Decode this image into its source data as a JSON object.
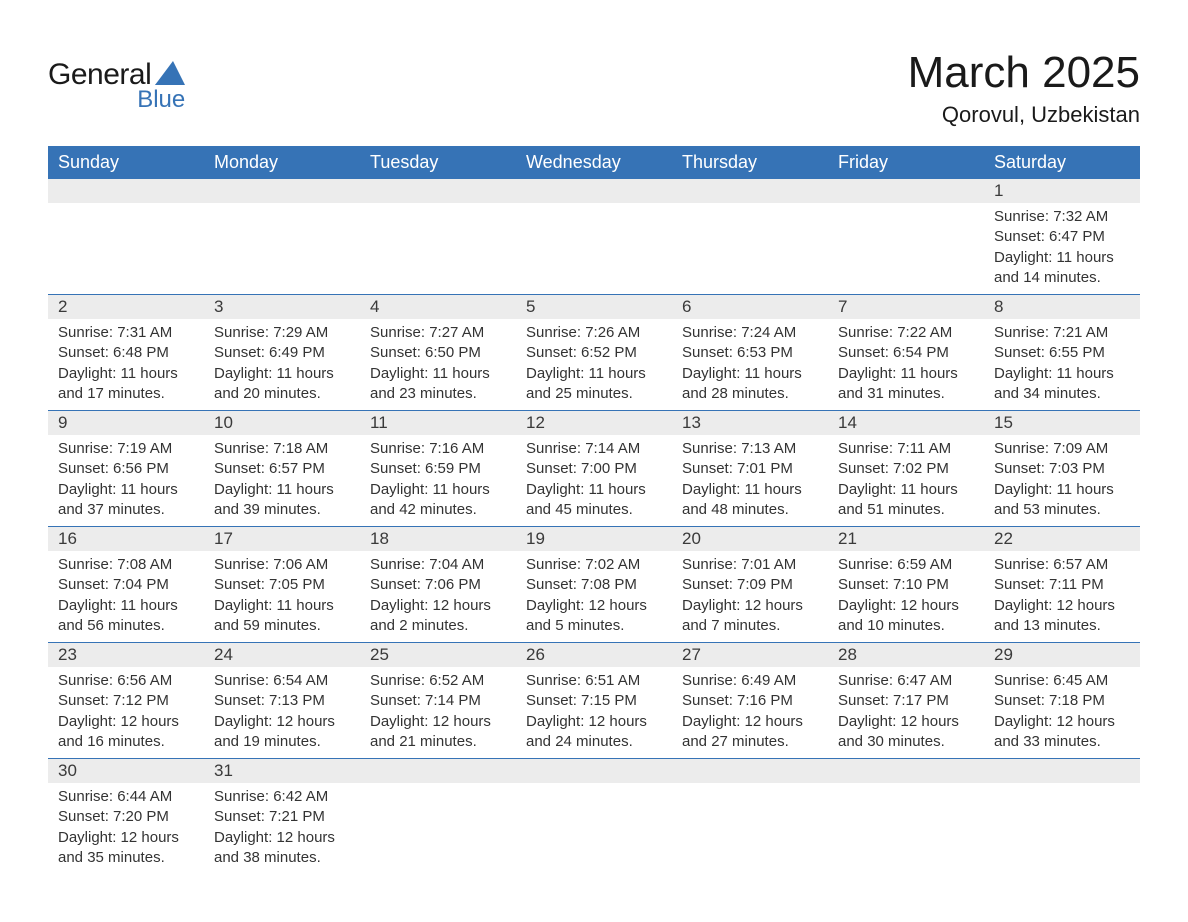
{
  "brand": {
    "word1": "General",
    "word2": "Blue",
    "sail_color": "#3673b6",
    "text_color_dark": "#1a1a1a"
  },
  "title": {
    "month_year": "March 2025",
    "location": "Qorovul, Uzbekistan"
  },
  "colors": {
    "header_bg": "#3673b6",
    "header_text": "#ffffff",
    "daynum_bg": "#ececec",
    "border": "#3673b6",
    "body_text": "#333333",
    "page_bg": "#ffffff"
  },
  "weekdays": [
    "Sunday",
    "Monday",
    "Tuesday",
    "Wednesday",
    "Thursday",
    "Friday",
    "Saturday"
  ],
  "weeks": [
    [
      null,
      null,
      null,
      null,
      null,
      null,
      {
        "n": "1",
        "sunrise": "Sunrise: 7:32 AM",
        "sunset": "Sunset: 6:47 PM",
        "day1": "Daylight: 11 hours",
        "day2": "and 14 minutes."
      }
    ],
    [
      {
        "n": "2",
        "sunrise": "Sunrise: 7:31 AM",
        "sunset": "Sunset: 6:48 PM",
        "day1": "Daylight: 11 hours",
        "day2": "and 17 minutes."
      },
      {
        "n": "3",
        "sunrise": "Sunrise: 7:29 AM",
        "sunset": "Sunset: 6:49 PM",
        "day1": "Daylight: 11 hours",
        "day2": "and 20 minutes."
      },
      {
        "n": "4",
        "sunrise": "Sunrise: 7:27 AM",
        "sunset": "Sunset: 6:50 PM",
        "day1": "Daylight: 11 hours",
        "day2": "and 23 minutes."
      },
      {
        "n": "5",
        "sunrise": "Sunrise: 7:26 AM",
        "sunset": "Sunset: 6:52 PM",
        "day1": "Daylight: 11 hours",
        "day2": "and 25 minutes."
      },
      {
        "n": "6",
        "sunrise": "Sunrise: 7:24 AM",
        "sunset": "Sunset: 6:53 PM",
        "day1": "Daylight: 11 hours",
        "day2": "and 28 minutes."
      },
      {
        "n": "7",
        "sunrise": "Sunrise: 7:22 AM",
        "sunset": "Sunset: 6:54 PM",
        "day1": "Daylight: 11 hours",
        "day2": "and 31 minutes."
      },
      {
        "n": "8",
        "sunrise": "Sunrise: 7:21 AM",
        "sunset": "Sunset: 6:55 PM",
        "day1": "Daylight: 11 hours",
        "day2": "and 34 minutes."
      }
    ],
    [
      {
        "n": "9",
        "sunrise": "Sunrise: 7:19 AM",
        "sunset": "Sunset: 6:56 PM",
        "day1": "Daylight: 11 hours",
        "day2": "and 37 minutes."
      },
      {
        "n": "10",
        "sunrise": "Sunrise: 7:18 AM",
        "sunset": "Sunset: 6:57 PM",
        "day1": "Daylight: 11 hours",
        "day2": "and 39 minutes."
      },
      {
        "n": "11",
        "sunrise": "Sunrise: 7:16 AM",
        "sunset": "Sunset: 6:59 PM",
        "day1": "Daylight: 11 hours",
        "day2": "and 42 minutes."
      },
      {
        "n": "12",
        "sunrise": "Sunrise: 7:14 AM",
        "sunset": "Sunset: 7:00 PM",
        "day1": "Daylight: 11 hours",
        "day2": "and 45 minutes."
      },
      {
        "n": "13",
        "sunrise": "Sunrise: 7:13 AM",
        "sunset": "Sunset: 7:01 PM",
        "day1": "Daylight: 11 hours",
        "day2": "and 48 minutes."
      },
      {
        "n": "14",
        "sunrise": "Sunrise: 7:11 AM",
        "sunset": "Sunset: 7:02 PM",
        "day1": "Daylight: 11 hours",
        "day2": "and 51 minutes."
      },
      {
        "n": "15",
        "sunrise": "Sunrise: 7:09 AM",
        "sunset": "Sunset: 7:03 PM",
        "day1": "Daylight: 11 hours",
        "day2": "and 53 minutes."
      }
    ],
    [
      {
        "n": "16",
        "sunrise": "Sunrise: 7:08 AM",
        "sunset": "Sunset: 7:04 PM",
        "day1": "Daylight: 11 hours",
        "day2": "and 56 minutes."
      },
      {
        "n": "17",
        "sunrise": "Sunrise: 7:06 AM",
        "sunset": "Sunset: 7:05 PM",
        "day1": "Daylight: 11 hours",
        "day2": "and 59 minutes."
      },
      {
        "n": "18",
        "sunrise": "Sunrise: 7:04 AM",
        "sunset": "Sunset: 7:06 PM",
        "day1": "Daylight: 12 hours",
        "day2": "and 2 minutes."
      },
      {
        "n": "19",
        "sunrise": "Sunrise: 7:02 AM",
        "sunset": "Sunset: 7:08 PM",
        "day1": "Daylight: 12 hours",
        "day2": "and 5 minutes."
      },
      {
        "n": "20",
        "sunrise": "Sunrise: 7:01 AM",
        "sunset": "Sunset: 7:09 PM",
        "day1": "Daylight: 12 hours",
        "day2": "and 7 minutes."
      },
      {
        "n": "21",
        "sunrise": "Sunrise: 6:59 AM",
        "sunset": "Sunset: 7:10 PM",
        "day1": "Daylight: 12 hours",
        "day2": "and 10 minutes."
      },
      {
        "n": "22",
        "sunrise": "Sunrise: 6:57 AM",
        "sunset": "Sunset: 7:11 PM",
        "day1": "Daylight: 12 hours",
        "day2": "and 13 minutes."
      }
    ],
    [
      {
        "n": "23",
        "sunrise": "Sunrise: 6:56 AM",
        "sunset": "Sunset: 7:12 PM",
        "day1": "Daylight: 12 hours",
        "day2": "and 16 minutes."
      },
      {
        "n": "24",
        "sunrise": "Sunrise: 6:54 AM",
        "sunset": "Sunset: 7:13 PM",
        "day1": "Daylight: 12 hours",
        "day2": "and 19 minutes."
      },
      {
        "n": "25",
        "sunrise": "Sunrise: 6:52 AM",
        "sunset": "Sunset: 7:14 PM",
        "day1": "Daylight: 12 hours",
        "day2": "and 21 minutes."
      },
      {
        "n": "26",
        "sunrise": "Sunrise: 6:51 AM",
        "sunset": "Sunset: 7:15 PM",
        "day1": "Daylight: 12 hours",
        "day2": "and 24 minutes."
      },
      {
        "n": "27",
        "sunrise": "Sunrise: 6:49 AM",
        "sunset": "Sunset: 7:16 PM",
        "day1": "Daylight: 12 hours",
        "day2": "and 27 minutes."
      },
      {
        "n": "28",
        "sunrise": "Sunrise: 6:47 AM",
        "sunset": "Sunset: 7:17 PM",
        "day1": "Daylight: 12 hours",
        "day2": "and 30 minutes."
      },
      {
        "n": "29",
        "sunrise": "Sunrise: 6:45 AM",
        "sunset": "Sunset: 7:18 PM",
        "day1": "Daylight: 12 hours",
        "day2": "and 33 minutes."
      }
    ],
    [
      {
        "n": "30",
        "sunrise": "Sunrise: 6:44 AM",
        "sunset": "Sunset: 7:20 PM",
        "day1": "Daylight: 12 hours",
        "day2": "and 35 minutes."
      },
      {
        "n": "31",
        "sunrise": "Sunrise: 6:42 AM",
        "sunset": "Sunset: 7:21 PM",
        "day1": "Daylight: 12 hours",
        "day2": "and 38 minutes."
      },
      null,
      null,
      null,
      null,
      null
    ]
  ]
}
